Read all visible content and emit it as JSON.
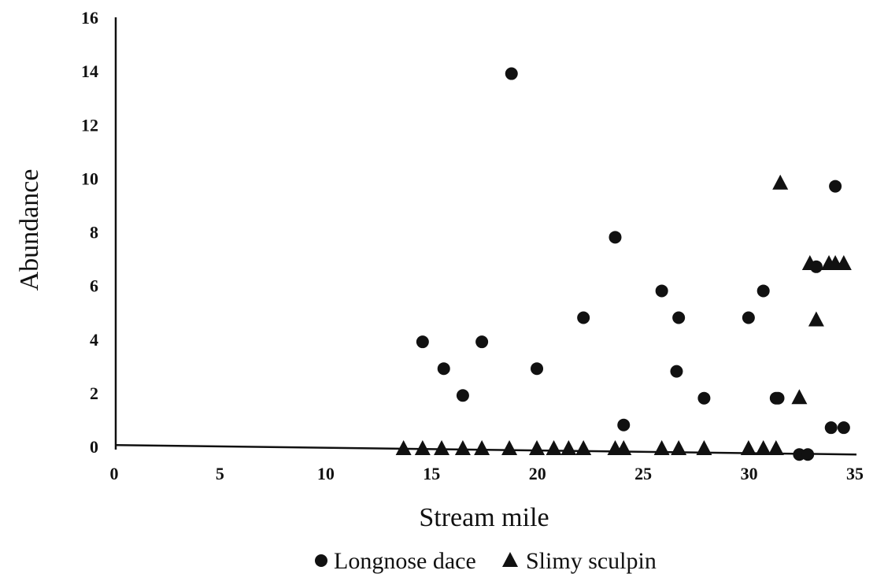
{
  "chart_data": {
    "type": "scatter",
    "title": "",
    "xlabel": "Stream mile",
    "ylabel": "Abundance",
    "xlim": [
      0,
      35
    ],
    "ylim": [
      0,
      16
    ],
    "xticks": [
      0,
      5,
      10,
      15,
      20,
      25,
      30,
      35
    ],
    "yticks": [
      0,
      2,
      4,
      6,
      8,
      10,
      12,
      14,
      16
    ],
    "grid": false,
    "legend": "bottom",
    "series": [
      {
        "name": "Longnose dace",
        "marker": "circle",
        "color": "#111111",
        "points": [
          [
            14.5,
            3.9
          ],
          [
            15.5,
            2.9
          ],
          [
            16.4,
            1.9
          ],
          [
            17.3,
            3.9
          ],
          [
            18.7,
            13.9
          ],
          [
            19.9,
            2.9
          ],
          [
            22.1,
            4.8
          ],
          [
            23.6,
            7.8
          ],
          [
            24.0,
            0.8
          ],
          [
            25.8,
            5.8
          ],
          [
            26.5,
            2.8
          ],
          [
            26.6,
            4.8
          ],
          [
            27.8,
            1.8
          ],
          [
            29.9,
            4.8
          ],
          [
            30.6,
            5.8
          ],
          [
            31.2,
            1.8
          ],
          [
            31.3,
            1.8
          ],
          [
            32.3,
            -0.3
          ],
          [
            32.7,
            -0.3
          ],
          [
            33.1,
            6.7
          ],
          [
            33.8,
            0.7
          ],
          [
            34.0,
            9.7
          ],
          [
            34.4,
            0.7
          ]
        ]
      },
      {
        "name": "Slimy sculpin",
        "marker": "triangle",
        "color": "#111111",
        "points": [
          [
            13.6,
            -0.1
          ],
          [
            14.5,
            -0.1
          ],
          [
            15.4,
            -0.1
          ],
          [
            16.4,
            -0.1
          ],
          [
            17.3,
            -0.1
          ],
          [
            18.6,
            -0.1
          ],
          [
            19.9,
            -0.1
          ],
          [
            20.7,
            -0.1
          ],
          [
            21.4,
            -0.1
          ],
          [
            22.1,
            -0.1
          ],
          [
            23.6,
            -0.1
          ],
          [
            24.0,
            -0.1
          ],
          [
            25.8,
            -0.1
          ],
          [
            26.6,
            -0.1
          ],
          [
            27.8,
            -0.1
          ],
          [
            29.9,
            -0.1
          ],
          [
            30.6,
            -0.1
          ],
          [
            31.2,
            -0.1
          ],
          [
            31.4,
            9.8
          ],
          [
            32.3,
            1.8
          ],
          [
            32.8,
            6.8
          ],
          [
            33.1,
            4.7
          ],
          [
            33.7,
            6.8
          ],
          [
            34.0,
            6.8
          ],
          [
            34.4,
            6.8
          ]
        ]
      }
    ],
    "baseline": {
      "x": [
        0,
        35
      ],
      "y": [
        0.05,
        -0.3
      ]
    }
  }
}
